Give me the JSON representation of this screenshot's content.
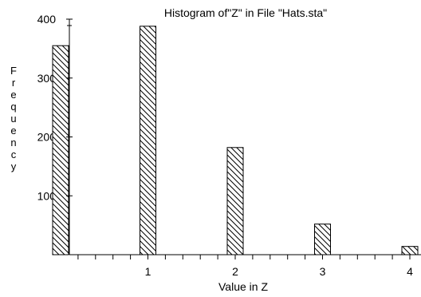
{
  "chart_data": {
    "type": "bar",
    "title": "Histogram of\"Z\" in File \"Hats.sta\"",
    "xlabel": "Value in Z",
    "ylabel": "Frequency",
    "categories": [
      "0",
      "1",
      "2",
      "3",
      "4"
    ],
    "values": [
      355,
      388,
      182,
      52,
      14
    ],
    "x_ticks": [
      "1",
      "2",
      "3",
      "4"
    ],
    "y_ticks": [
      "100",
      "200",
      "300",
      "400"
    ],
    "ylim": [
      0,
      400
    ],
    "xlim": [
      0,
      4
    ],
    "grid": false,
    "legend": "none",
    "bar_pattern": "diagonal-hatch",
    "bar_fill": "#ffffff",
    "line_color": "#000000"
  }
}
